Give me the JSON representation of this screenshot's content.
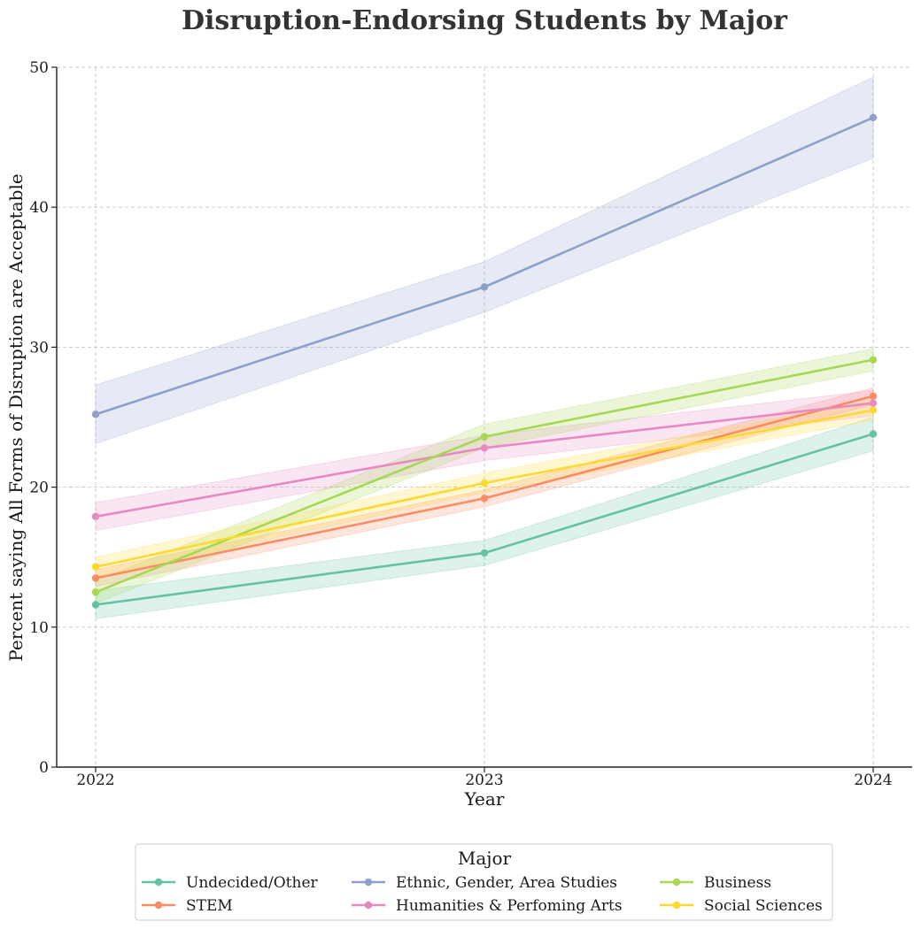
{
  "chart_data": {
    "type": "line",
    "title": "Disruption-Endorsing Students by Major",
    "xlabel": "Year",
    "ylabel": "Percent saying All Forms of Disruption are Acceptable",
    "x": [
      "2022",
      "2023",
      "2024"
    ],
    "ylim": [
      0,
      50
    ],
    "yticks": [
      0,
      10,
      20,
      30,
      40,
      50
    ],
    "grid": true,
    "legend": {
      "title": "Major",
      "placement": "bottom-center",
      "columns": 3
    },
    "series": [
      {
        "name": "Undecided/Other",
        "color": "#66c2a5",
        "values": [
          11.6,
          15.3,
          23.8
        ],
        "lower": [
          10.6,
          14.4,
          22.6
        ],
        "upper": [
          12.6,
          16.2,
          25.0
        ]
      },
      {
        "name": "STEM",
        "color": "#fc8d62",
        "values": [
          13.5,
          19.2,
          26.5
        ],
        "lower": [
          12.9,
          18.6,
          25.9
        ],
        "upper": [
          14.1,
          19.8,
          27.1
        ]
      },
      {
        "name": "Ethnic, Gender, Area Studies",
        "color": "#8da0cb",
        "values": [
          25.2,
          34.3,
          46.4
        ],
        "lower": [
          23.1,
          32.5,
          43.5
        ],
        "upper": [
          27.3,
          36.1,
          49.3
        ]
      },
      {
        "name": "Humanities & Perfoming Arts",
        "color": "#e78ac3",
        "values": [
          17.9,
          22.8,
          26.0
        ],
        "lower": [
          16.9,
          21.9,
          25.1
        ],
        "upper": [
          18.9,
          23.7,
          26.9
        ]
      },
      {
        "name": "Business",
        "color": "#a6d854",
        "values": [
          12.5,
          23.6,
          29.1
        ],
        "lower": [
          11.7,
          22.8,
          28.3
        ],
        "upper": [
          13.3,
          24.5,
          29.9
        ]
      },
      {
        "name": "Social Sciences",
        "color": "#ffd92f",
        "values": [
          14.3,
          20.3,
          25.5
        ],
        "lower": [
          13.6,
          19.6,
          24.8
        ],
        "upper": [
          15.0,
          21.0,
          26.2
        ]
      }
    ]
  }
}
